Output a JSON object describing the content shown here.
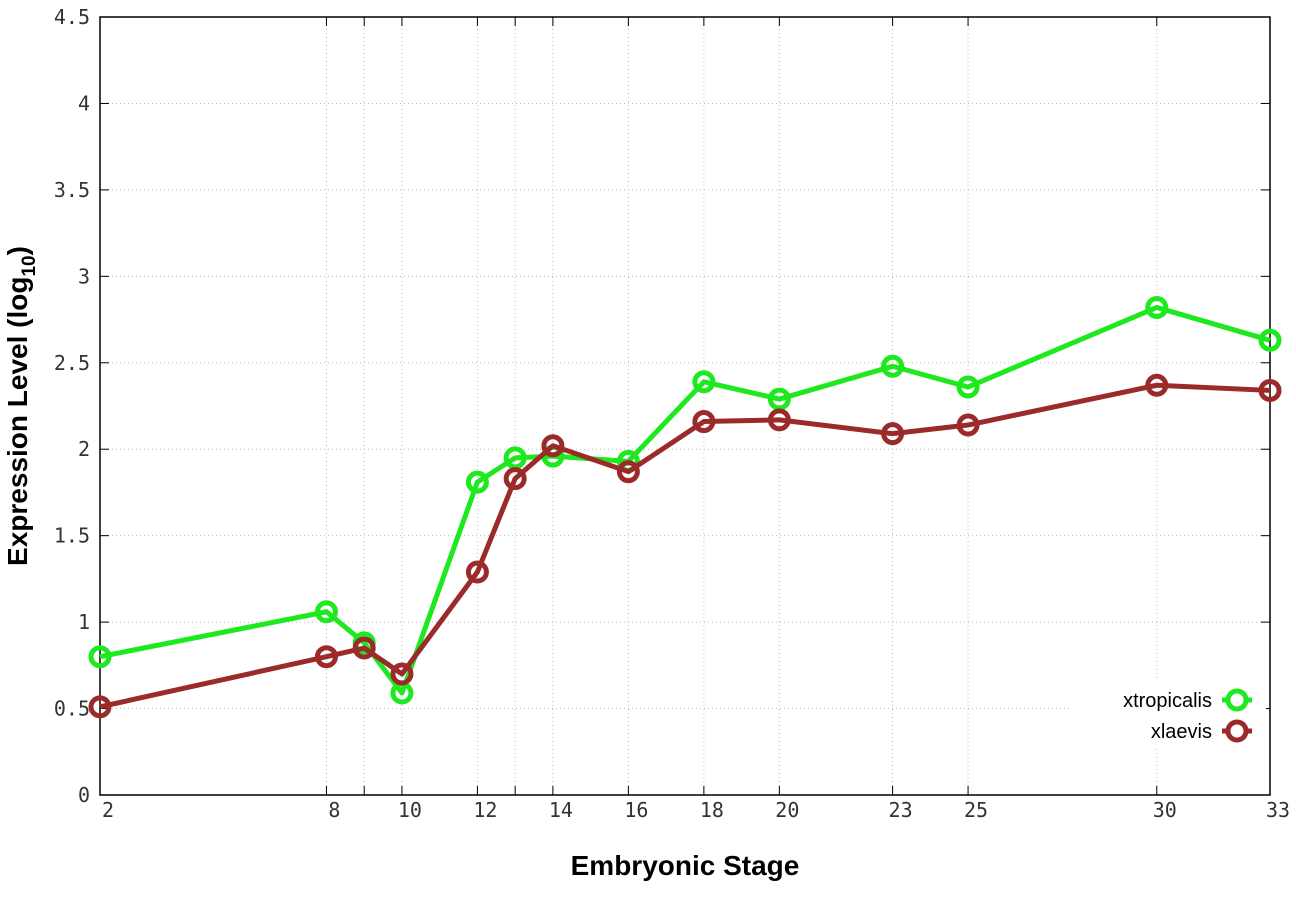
{
  "chart_data": {
    "type": "line",
    "xlabel": "Embryonic Stage",
    "ylabel": {
      "main": "Expression Level (log",
      "subscript": "10",
      "close": ")"
    },
    "x": [
      2,
      8,
      9,
      10,
      12,
      13,
      14,
      16,
      18,
      20,
      23,
      25,
      30,
      33
    ],
    "x_tick_labels": [
      "2",
      "8",
      "10",
      "12",
      "14",
      "16",
      "18",
      "20",
      "23",
      "25",
      "30",
      "33"
    ],
    "ylim": [
      0,
      4.5
    ],
    "y_ticks": [
      0,
      0.5,
      1,
      1.5,
      2,
      2.5,
      3,
      3.5,
      4,
      4.5
    ],
    "y_tick_labels": [
      "0",
      "0.5",
      "1",
      "1.5",
      "2",
      "2.5",
      "3",
      "3.5",
      "4",
      "4.5"
    ],
    "grid": true,
    "legend_position": "bottom-right",
    "series": [
      {
        "name": "xtropicalis",
        "color": "#1ee81e",
        "values": [
          0.8,
          1.06,
          0.88,
          0.59,
          1.81,
          1.95,
          1.96,
          1.93,
          2.39,
          2.29,
          2.48,
          2.36,
          2.82,
          2.63
        ]
      },
      {
        "name": "xlaevis",
        "color": "#9b2b2b",
        "values": [
          0.51,
          0.8,
          0.85,
          0.7,
          1.29,
          1.83,
          2.02,
          1.87,
          2.16,
          2.17,
          2.09,
          2.14,
          2.37,
          2.34
        ]
      }
    ]
  }
}
